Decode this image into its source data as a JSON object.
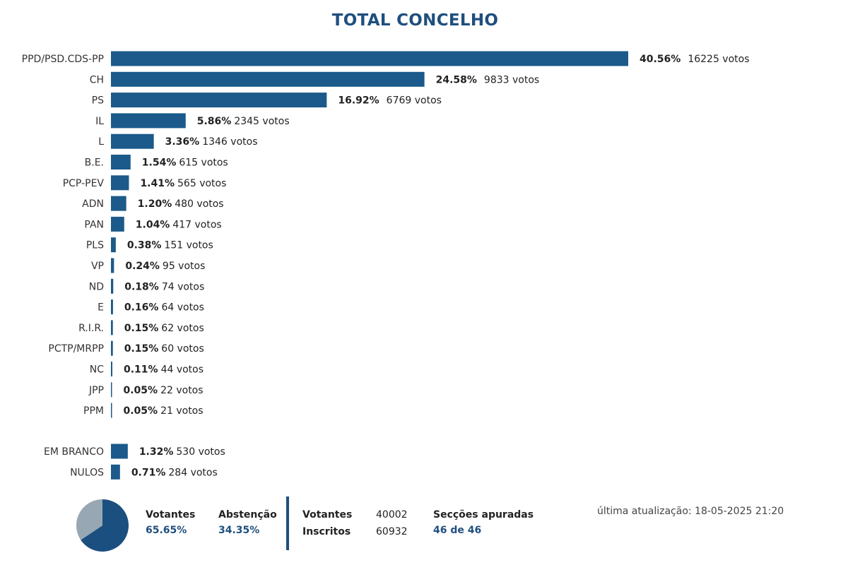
{
  "title": "TOTAL CONCELHO",
  "colors": {
    "bar": "#1b5a8a",
    "accent": "#1f4f7e",
    "pie_primary": "#1b4f80",
    "pie_secondary": "#97a7b3"
  },
  "chart_data": {
    "type": "bar",
    "orientation": "horizontal",
    "title": "TOTAL CONCELHO",
    "categories": [
      "PPD/PSD.CDS-PP",
      "CH",
      "PS",
      "IL",
      "L",
      "B.E.",
      "PCP-PEV",
      "ADN",
      "PAN",
      "PLS",
      "VP",
      "ND",
      "E",
      "R.I.R.",
      "PCTP/MRPP",
      "NC",
      "JPP",
      "PPM"
    ],
    "values": [
      40.56,
      24.58,
      16.92,
      5.86,
      3.36,
      1.54,
      1.41,
      1.2,
      1.04,
      0.38,
      0.24,
      0.18,
      0.16,
      0.15,
      0.15,
      0.11,
      0.05,
      0.05
    ],
    "votes": [
      16225,
      9833,
      6769,
      2345,
      1346,
      615,
      565,
      480,
      417,
      151,
      95,
      74,
      64,
      62,
      60,
      44,
      22,
      21
    ],
    "pct_labels": [
      "40.56%",
      "24.58%",
      "16.92%",
      "5.86%",
      "3.36%",
      "1.54%",
      "1.41%",
      "1.20%",
      "1.04%",
      "0.38%",
      "0.24%",
      "0.18%",
      "0.16%",
      "0.15%",
      "0.15%",
      "0.11%",
      "0.05%",
      "0.05%"
    ],
    "votes_labels": [
      "16225 votos",
      "9833 votos",
      "6769 votos",
      "2345 votos",
      "1346 votos",
      "615 votos",
      "565 votos",
      "480 votos",
      "417 votos",
      "151 votos",
      "95 votos",
      "74 votos",
      "64 votos",
      "62 votos",
      "60 votos",
      "44 votos",
      "22 votos",
      "21 votos"
    ],
    "extra_categories": [
      "EM BRANCO",
      "NULOS"
    ],
    "extra_values": [
      1.32,
      0.71
    ],
    "extra_votes": [
      530,
      284
    ],
    "extra_pct_labels": [
      "1.32%",
      "0.71%"
    ],
    "extra_votes_labels": [
      "530 votos",
      "284 votos"
    ],
    "xlim": [
      0,
      40.56
    ],
    "grid": false,
    "legend": "none"
  },
  "pie": {
    "type": "pie",
    "values": [
      65.65,
      34.35
    ],
    "labels": [
      "Votantes",
      "Abstenção"
    ]
  },
  "footer": {
    "votantes_label": "Votantes",
    "votantes_pct": "65.65%",
    "abstencao_label": "Abstenção",
    "abstencao_pct": "34.35%",
    "votantes_count_label": "Votantes",
    "votantes_count": "40002",
    "inscritos_label": "Inscritos",
    "inscritos_count": "60932",
    "seccoes_label": "Secções apuradas",
    "seccoes_value": "46 de 46",
    "updated": "última atualização: 18-05-2025 21:20"
  }
}
